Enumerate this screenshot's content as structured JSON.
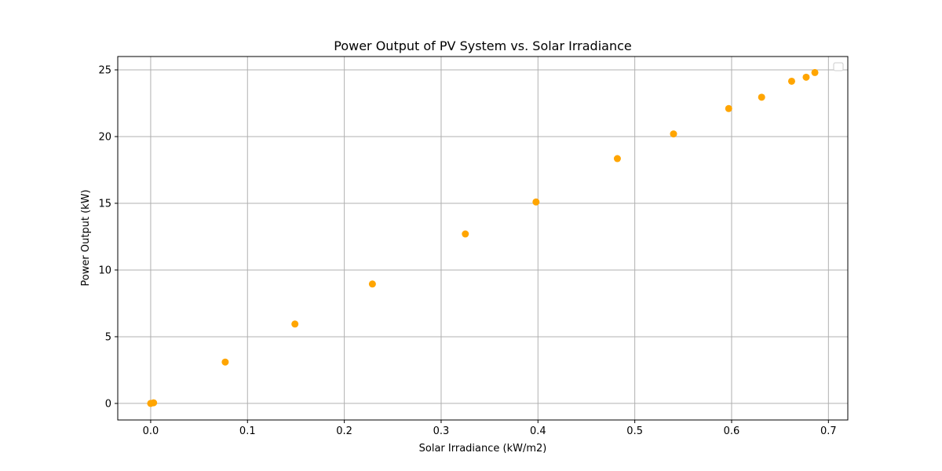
{
  "chart_data": {
    "type": "scatter",
    "title": "Power Output of PV System vs. Solar Irradiance",
    "xlabel": "Solar Irradiance (kW/m2)",
    "ylabel": "Power Output (kW)",
    "xlim": [
      -0.034,
      0.72
    ],
    "ylim": [
      -1.24,
      26.0
    ],
    "xticks": [
      0.0,
      0.1,
      0.2,
      0.3,
      0.4,
      0.5,
      0.6,
      0.7
    ],
    "xtick_labels": [
      "0.0",
      "0.1",
      "0.2",
      "0.3",
      "0.4",
      "0.5",
      "0.6",
      "0.7"
    ],
    "yticks": [
      0,
      5,
      10,
      15,
      20,
      25
    ],
    "ytick_labels": [
      "0",
      "5",
      "10",
      "15",
      "20",
      "25"
    ],
    "grid": true,
    "legend": "top-right",
    "series": [
      {
        "color": "#ffa500",
        "x": [
          0.0,
          0.003,
          0.077,
          0.149,
          0.229,
          0.325,
          0.398,
          0.482,
          0.54,
          0.597,
          0.631,
          0.662,
          0.677,
          0.686
        ],
        "y": [
          0.0,
          0.05,
          3.1,
          5.95,
          8.95,
          12.7,
          15.1,
          18.35,
          20.2,
          22.1,
          22.95,
          24.15,
          24.45,
          24.8
        ]
      }
    ]
  }
}
